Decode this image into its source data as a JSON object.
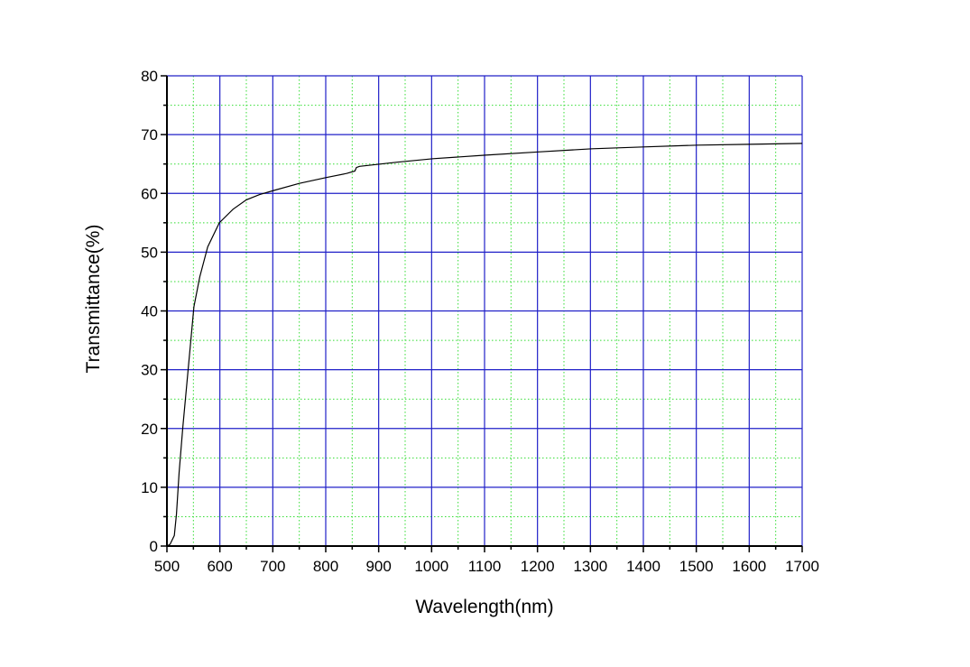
{
  "chart_data": {
    "type": "line",
    "title": "",
    "xlabel": "Wavelength(nm)",
    "ylabel": "Transmittance(%)",
    "xlim": [
      500,
      1700
    ],
    "ylim": [
      0,
      80
    ],
    "xticks": [
      500,
      600,
      700,
      800,
      900,
      1000,
      1100,
      1200,
      1300,
      1400,
      1500,
      1600,
      1700
    ],
    "yticks": [
      0,
      10,
      20,
      30,
      40,
      50,
      60,
      70,
      80
    ],
    "grid": true,
    "colors": {
      "major_grid": "#2020c8",
      "minor_grid": "#33dd33",
      "line": "#000000"
    },
    "series": [
      {
        "name": "Transmittance",
        "x": [
          500,
          506,
          514,
          518,
          523,
          530,
          540,
          551,
          562,
          577,
          599,
          625,
          650,
          675,
          702,
          750,
          801,
          840,
          855,
          858,
          864,
          935,
          1003,
          1102,
          1202,
          1304,
          1400,
          1503,
          1600,
          1700
        ],
        "y": [
          0,
          0.3,
          1.8,
          5.5,
          12.5,
          20.2,
          30,
          40.7,
          45.8,
          50.9,
          55,
          57.3,
          58.9,
          59.8,
          60.5,
          61.7,
          62.7,
          63.4,
          63.8,
          64.4,
          64.6,
          65.3,
          65.9,
          66.5,
          67.05,
          67.6,
          67.9,
          68.2,
          68.35,
          68.5
        ]
      }
    ]
  }
}
